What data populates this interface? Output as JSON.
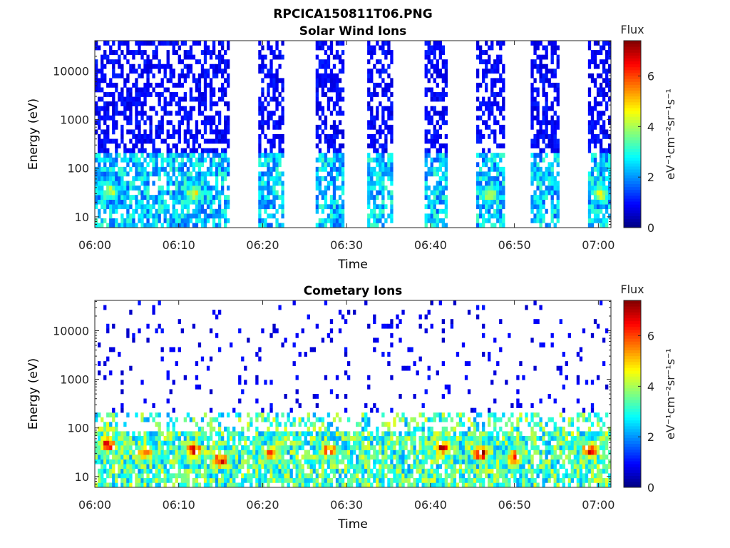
{
  "figure_title": "RPCICA150811T06.PNG",
  "colorbar": {
    "title": "Flux",
    "units": "eV⁻¹cm⁻²sr⁻¹s⁻¹",
    "ticks": [
      "0",
      "2",
      "4",
      "6"
    ],
    "tick_values": [
      0,
      2,
      4,
      6
    ],
    "range": [
      0,
      7.4
    ],
    "colormap": "jet"
  },
  "chart_data": [
    {
      "type": "heatmap",
      "title": "Solar Wind Ions",
      "xlabel": "Time",
      "ylabel": "Energy (eV)",
      "x_ticks": [
        "06:00",
        "06:10",
        "06:20",
        "06:30",
        "06:40",
        "06:50",
        "07:00"
      ],
      "x_tick_minutes": [
        0,
        10,
        20,
        30,
        40,
        50,
        60
      ],
      "xlim_minutes": [
        0,
        61.5
      ],
      "y_scale": "log",
      "y_ticks": [
        "10",
        "100",
        "1000",
        "10000"
      ],
      "y_tick_values": [
        10,
        100,
        1000,
        10000
      ],
      "ylim": [
        6,
        42000
      ],
      "grid": false,
      "active_intervals_minutes": [
        [
          0,
          16.2
        ],
        [
          19.5,
          22.6
        ],
        [
          26.3,
          29.6
        ],
        [
          32.5,
          35.7
        ],
        [
          39.2,
          42.0
        ],
        [
          45.5,
          48.8
        ],
        [
          52.0,
          55.3
        ],
        [
          58.7,
          61.5
        ]
      ],
      "note_hotspots": [
        {
          "t_min": 1.8,
          "energy_ev": 35,
          "flux": 4.5
        },
        {
          "t_min": 11.8,
          "energy_ev": 30,
          "flux": 4.8
        },
        {
          "t_min": 47.0,
          "energy_ev": 30,
          "flux": 4.6
        },
        {
          "t_min": 60.2,
          "energy_ev": 30,
          "flux": 4.7
        }
      ]
    },
    {
      "type": "heatmap",
      "title": "Cometary Ions",
      "xlabel": "Time",
      "ylabel": "Energy (eV)",
      "x_ticks": [
        "06:00",
        "06:10",
        "06:20",
        "06:30",
        "06:40",
        "06:50",
        "07:00"
      ],
      "x_tick_minutes": [
        0,
        10,
        20,
        30,
        40,
        50,
        60
      ],
      "xlim_minutes": [
        0,
        61.5
      ],
      "y_scale": "log",
      "y_ticks": [
        "10",
        "100",
        "1000",
        "10000"
      ],
      "y_tick_values": [
        10,
        100,
        1000,
        10000
      ],
      "ylim": [
        6,
        42000
      ],
      "grid": false,
      "note_hotspots": [
        {
          "t_min": 1.5,
          "energy_ev": 45,
          "flux": 6.8
        },
        {
          "t_min": 6.0,
          "energy_ev": 30,
          "flux": 6.0
        },
        {
          "t_min": 11.8,
          "energy_ev": 35,
          "flux": 7.2
        },
        {
          "t_min": 15.0,
          "energy_ev": 22,
          "flux": 6.8
        },
        {
          "t_min": 21.0,
          "energy_ev": 30,
          "flux": 6.3
        },
        {
          "t_min": 28.0,
          "energy_ev": 35,
          "flux": 6.4
        },
        {
          "t_min": 41.5,
          "energy_ev": 40,
          "flux": 7.0
        },
        {
          "t_min": 46.0,
          "energy_ev": 30,
          "flux": 7.1
        },
        {
          "t_min": 50.0,
          "energy_ev": 25,
          "flux": 6.4
        },
        {
          "t_min": 59.0,
          "energy_ev": 35,
          "flux": 7.0
        }
      ]
    }
  ]
}
